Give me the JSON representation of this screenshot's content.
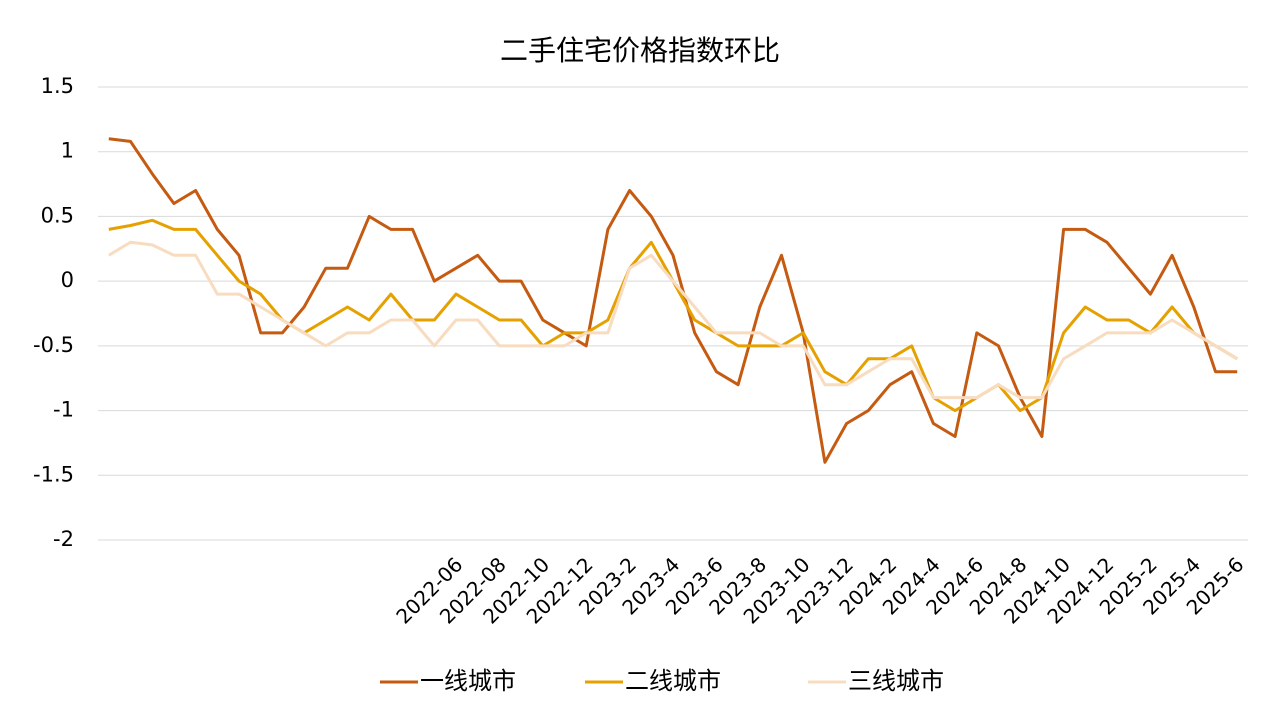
{
  "chart_data": {
    "type": "line",
    "title": "二手住宅价格指数环比",
    "categories": [
      null,
      null,
      null,
      null,
      null,
      null,
      null,
      null,
      null,
      null,
      null,
      null,
      null,
      null,
      null,
      null,
      "2022-06",
      null,
      "2022-08",
      null,
      "2022-10",
      null,
      "2022-12",
      null,
      "2023-2",
      null,
      "2023-4",
      null,
      "2023-6",
      null,
      "2023-8",
      null,
      "2023-10",
      null,
      "2023-12",
      null,
      "2024-2",
      null,
      "2024-4",
      null,
      "2024-6",
      null,
      "2024-8",
      null,
      "2024-10",
      null,
      "2024-12",
      null,
      "2025-2",
      null,
      "2025-4",
      null,
      "2025-6"
    ],
    "series": [
      {
        "name": "一线城市",
        "color": "#c55a11",
        "values": [
          1.1,
          1.08,
          0.83,
          0.6,
          0.7,
          0.4,
          0.2,
          -0.4,
          -0.4,
          -0.2,
          0.1,
          0.1,
          0.5,
          0.4,
          0.4,
          0,
          0.1,
          0.2,
          0,
          0,
          -0.3,
          -0.4,
          -0.5,
          0.4,
          0.7,
          0.5,
          0.2,
          -0.4,
          -0.7,
          -0.8,
          -0.2,
          0.2,
          -0.4,
          -1.4,
          -1.1,
          -1.0,
          -0.8,
          -0.7,
          -1.1,
          -1.2,
          -0.4,
          -0.5,
          -0.9,
          -1.2,
          0.4,
          0.4,
          0.3,
          0.1,
          -0.1,
          0.2,
          -0.2,
          -0.7,
          -0.7
        ]
      },
      {
        "name": "二线城市",
        "color": "#e5a100",
        "values": [
          0.4,
          0.43,
          0.47,
          0.4,
          0.4,
          0.2,
          0,
          -0.1,
          -0.3,
          -0.4,
          -0.3,
          -0.2,
          -0.3,
          -0.1,
          -0.3,
          -0.3,
          -0.1,
          -0.2,
          -0.3,
          -0.3,
          -0.5,
          -0.4,
          -0.4,
          -0.3,
          0.1,
          0.3,
          0,
          -0.3,
          -0.4,
          -0.5,
          -0.5,
          -0.5,
          -0.4,
          -0.7,
          -0.8,
          -0.6,
          -0.6,
          -0.5,
          -0.9,
          -1.0,
          -0.9,
          -0.8,
          -1.0,
          -0.9,
          -0.4,
          -0.2,
          -0.3,
          -0.3,
          -0.4,
          -0.2,
          -0.4,
          -0.5,
          -0.6
        ]
      },
      {
        "name": "三线城市",
        "color": "#f8dcc0",
        "values": [
          0.2,
          0.3,
          0.28,
          0.2,
          0.2,
          -0.1,
          -0.1,
          -0.2,
          -0.3,
          -0.4,
          -0.5,
          -0.4,
          -0.4,
          -0.3,
          -0.3,
          -0.5,
          -0.3,
          -0.3,
          -0.5,
          -0.5,
          -0.5,
          -0.5,
          -0.4,
          -0.4,
          0.1,
          0.2,
          0,
          -0.2,
          -0.4,
          -0.4,
          -0.4,
          -0.5,
          -0.5,
          -0.8,
          -0.8,
          -0.7,
          -0.6,
          -0.6,
          -0.9,
          -0.9,
          -0.9,
          -0.8,
          -0.9,
          -0.9,
          -0.6,
          -0.5,
          -0.4,
          -0.4,
          -0.4,
          -0.3,
          -0.4,
          -0.5,
          -0.6
        ]
      }
    ],
    "ylim": [
      -2,
      1.5
    ],
    "yticks": [
      1.5,
      1,
      0.5,
      0,
      -0.5,
      -1,
      -1.5,
      -2
    ],
    "grid": true,
    "legend": "bottom"
  }
}
